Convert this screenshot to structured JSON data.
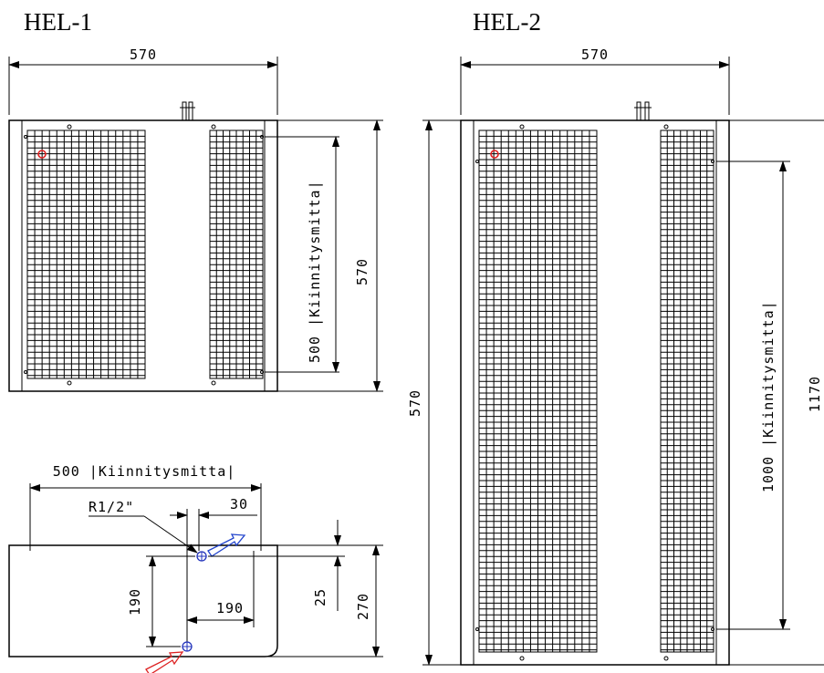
{
  "titles": {
    "hel1": "HEL-1",
    "hel2": "HEL-2"
  },
  "hel1_front": {
    "width_dim": "570",
    "height_dim": "570",
    "mount_dim": "500 |Kiinnitysmitta|"
  },
  "hel1_side": {
    "mount_dim": "500 |Kiinnitysmitta|",
    "thread": "R1/2\"",
    "offset_30": "30",
    "dim_190_v": "190",
    "dim_190_h": "190",
    "dim_25": "25",
    "dim_270": "270"
  },
  "hel2_front": {
    "width_dim": "570",
    "left_height_dim": "570",
    "mount_dim": "1000 |Kiinnitysmitta|",
    "height_dim": "1170"
  },
  "colors": {
    "indicator": "#e02020",
    "flow_out": "#2244cc",
    "flow_in": "#dd2222",
    "connector": "#2233bb"
  }
}
